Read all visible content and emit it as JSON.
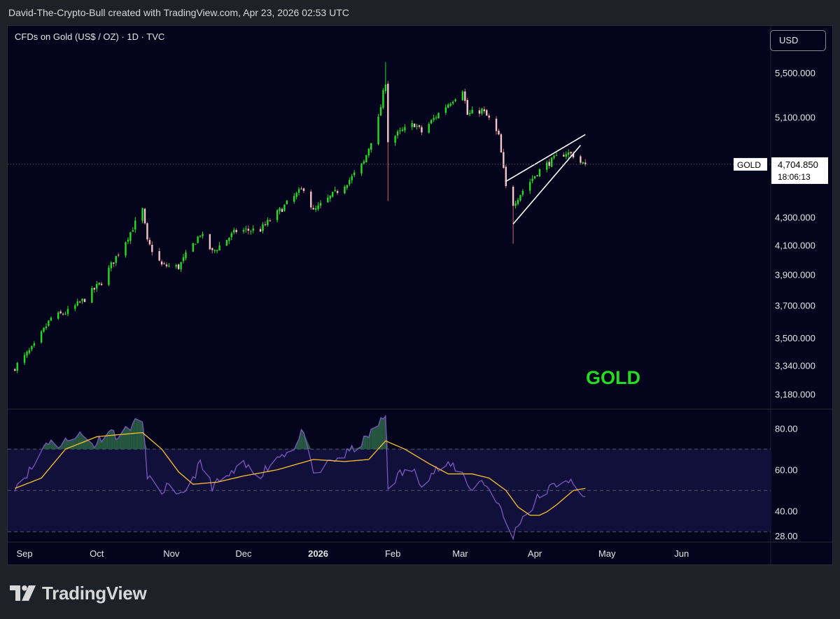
{
  "header": {
    "text": "David-The-Crypto-Bull created with TradingView.com, Apr 23, 2026 02:53 UTC"
  },
  "symbol": {
    "text": "CFDs on Gold (US$ / OZ) · 1D · TVC"
  },
  "currency_button": {
    "label": "USD"
  },
  "price_label": {
    "ticker": "GOLD",
    "price": "4,704.850",
    "countdown": "18:06:13"
  },
  "annotation": {
    "text": "GOLD"
  },
  "footer": {
    "brand": "TradingView"
  },
  "colors": {
    "background": "#04041c",
    "up": "#22dd22",
    "down": "#f2c6c6",
    "rsi": "#7e57c2",
    "rsi_ma": "#fbc02d",
    "annotation": "#22dd22"
  },
  "chart_data": [
    {
      "type": "candlestick",
      "title": "CFDs on Gold (US$ / OZ) · 1D · TVC",
      "x_ticks": [
        "Sep",
        "Oct",
        "Nov",
        "Dec",
        "2026",
        "Feb",
        "Mar",
        "Apr",
        "May",
        "Jun"
      ],
      "y_ticks": [
        "5,500.000",
        "5,100.000",
        "4,300.000",
        "4,100.000",
        "3,900.000",
        "3,700.000",
        "3,500.000",
        "3,340.000",
        "3,180.000"
      ],
      "y_tick_values": [
        5500,
        5100,
        4300,
        4100,
        3900,
        3700,
        3500,
        3340,
        3180
      ],
      "ylim": [
        3100,
        5900
      ],
      "scale": "log",
      "last_price": 4704.85,
      "close_anchors": [
        [
          "2025-08-28",
          3330
        ],
        [
          "2025-09-05",
          3450
        ],
        [
          "2025-09-12",
          3620
        ],
        [
          "2025-09-19",
          3660
        ],
        [
          "2025-09-26",
          3740
        ],
        [
          "2025-10-03",
          3850
        ],
        [
          "2025-10-08",
          3990
        ],
        [
          "2025-10-14",
          4160
        ],
        [
          "2025-10-20",
          4350
        ],
        [
          "2025-10-22",
          4120
        ],
        [
          "2025-10-28",
          3960
        ],
        [
          "2025-11-04",
          3950
        ],
        [
          "2025-11-13",
          4180
        ],
        [
          "2025-11-18",
          4050
        ],
        [
          "2025-11-28",
          4200
        ],
        [
          "2025-12-08",
          4210
        ],
        [
          "2025-12-15",
          4330
        ],
        [
          "2025-12-26",
          4520
        ],
        [
          "2025-12-30",
          4340
        ],
        [
          "2026-01-08",
          4480
        ],
        [
          "2026-01-15",
          4600
        ],
        [
          "2026-01-20",
          4720
        ],
        [
          "2026-01-26",
          5080
        ],
        [
          "2026-01-29",
          5420
        ],
        [
          "2026-01-30",
          4900
        ],
        [
          "2026-02-05",
          4980
        ],
        [
          "2026-02-10",
          5040
        ],
        [
          "2026-02-13",
          4970
        ],
        [
          "2026-02-20",
          5130
        ],
        [
          "2026-02-27",
          5280
        ],
        [
          "2026-03-02",
          5350
        ],
        [
          "2026-03-04",
          5120
        ],
        [
          "2026-03-10",
          5160
        ],
        [
          "2026-03-13",
          5080
        ],
        [
          "2026-03-17",
          4930
        ],
        [
          "2026-03-20",
          4520
        ],
        [
          "2026-03-23",
          4400
        ],
        [
          "2026-03-27",
          4500
        ],
        [
          "2026-04-02",
          4640
        ],
        [
          "2026-04-07",
          4720
        ],
        [
          "2026-04-10",
          4760
        ],
        [
          "2026-04-14",
          4800
        ],
        [
          "2026-04-17",
          4780
        ],
        [
          "2026-04-20",
          4720
        ],
        [
          "2026-04-22",
          4705
        ]
      ],
      "extreme_wicks": [
        [
          "2026-01-29",
          5600
        ],
        [
          "2026-01-30",
          4420
        ],
        [
          "2026-03-23",
          4110
        ]
      ],
      "trendlines": [
        {
          "from": [
            "2026-03-20",
            4570
          ],
          "to": [
            "2026-04-22",
            4950
          ]
        },
        {
          "from": [
            "2026-03-23",
            4250
          ],
          "to": [
            "2026-04-20",
            4860
          ]
        }
      ]
    },
    {
      "type": "line",
      "title": "RSI",
      "y_ticks": [
        "80.00",
        "60.00",
        "40.00",
        "28.00"
      ],
      "y_tick_values": [
        80,
        60,
        40,
        28
      ],
      "band": [
        30,
        70
      ],
      "midline": 50,
      "ylim": [
        25,
        88
      ],
      "series": [
        {
          "values_by_date": [
            [
              "2025-08-28",
              52
            ],
            [
              "2025-09-05",
              62
            ],
            [
              "2025-09-10",
              74
            ],
            [
              "2025-09-16",
              72
            ],
            [
              "2025-09-23",
              78
            ],
            [
              "2025-09-30",
              72
            ],
            [
              "2025-10-06",
              80
            ],
            [
              "2025-10-10",
              76
            ],
            [
              "2025-10-16",
              82
            ],
            [
              "2025-10-20",
              84
            ],
            [
              "2025-10-22",
              58
            ],
            [
              "2025-10-27",
              48
            ],
            [
              "2025-10-30",
              52
            ],
            [
              "2025-11-04",
              46
            ],
            [
              "2025-11-10",
              56
            ],
            [
              "2025-11-13",
              63
            ],
            [
              "2025-11-18",
              52
            ],
            [
              "2025-11-25",
              57
            ],
            [
              "2025-12-01",
              62
            ],
            [
              "2025-12-08",
              58
            ],
            [
              "2025-12-15",
              66
            ],
            [
              "2025-12-23",
              72
            ],
            [
              "2025-12-26",
              80
            ],
            [
              "2025-12-30",
              56
            ],
            [
              "2026-01-06",
              64
            ],
            [
              "2026-01-12",
              67
            ],
            [
              "2026-01-20",
              74
            ],
            [
              "2026-01-26",
              82
            ],
            [
              "2026-01-29",
              86
            ],
            [
              "2026-01-30",
              52
            ],
            [
              "2026-02-04",
              58
            ],
            [
              "2026-02-09",
              60
            ],
            [
              "2026-02-13",
              54
            ],
            [
              "2026-02-19",
              60
            ],
            [
              "2026-02-26",
              62
            ],
            [
              "2026-03-02",
              58
            ],
            [
              "2026-03-06",
              50
            ],
            [
              "2026-03-10",
              55
            ],
            [
              "2026-03-16",
              46
            ],
            [
              "2026-03-20",
              34
            ],
            [
              "2026-03-23",
              28
            ],
            [
              "2026-03-26",
              36
            ],
            [
              "2026-03-30",
              40
            ],
            [
              "2026-04-02",
              46
            ],
            [
              "2026-04-06",
              50
            ],
            [
              "2026-04-10",
              53
            ],
            [
              "2026-04-14",
              56
            ],
            [
              "2026-04-17",
              52
            ],
            [
              "2026-04-20",
              48
            ],
            [
              "2026-04-22",
              47
            ]
          ]
        },
        {
          "values_by_date": [
            [
              "2025-08-28",
              51
            ],
            [
              "2025-09-08",
              56
            ],
            [
              "2025-09-18",
              70
            ],
            [
              "2025-10-01",
              76
            ],
            [
              "2025-10-10",
              77
            ],
            [
              "2025-10-20",
              78
            ],
            [
              "2025-10-28",
              70
            ],
            [
              "2025-11-04",
              59
            ],
            [
              "2025-11-10",
              53
            ],
            [
              "2025-11-20",
              54
            ],
            [
              "2025-12-01",
              57
            ],
            [
              "2025-12-15",
              60
            ],
            [
              "2025-12-30",
              65
            ],
            [
              "2026-01-12",
              64
            ],
            [
              "2026-01-22",
              65
            ],
            [
              "2026-01-29",
              74
            ],
            [
              "2026-02-06",
              70
            ],
            [
              "2026-02-16",
              63
            ],
            [
              "2026-02-24",
              58
            ],
            [
              "2026-03-06",
              58
            ],
            [
              "2026-03-13",
              56
            ],
            [
              "2026-03-20",
              50
            ],
            [
              "2026-03-25",
              42
            ],
            [
              "2026-03-30",
              38
            ],
            [
              "2026-04-04",
              38
            ],
            [
              "2026-04-10",
              43
            ],
            [
              "2026-04-17",
              50
            ],
            [
              "2026-04-22",
              51
            ]
          ]
        }
      ]
    }
  ]
}
